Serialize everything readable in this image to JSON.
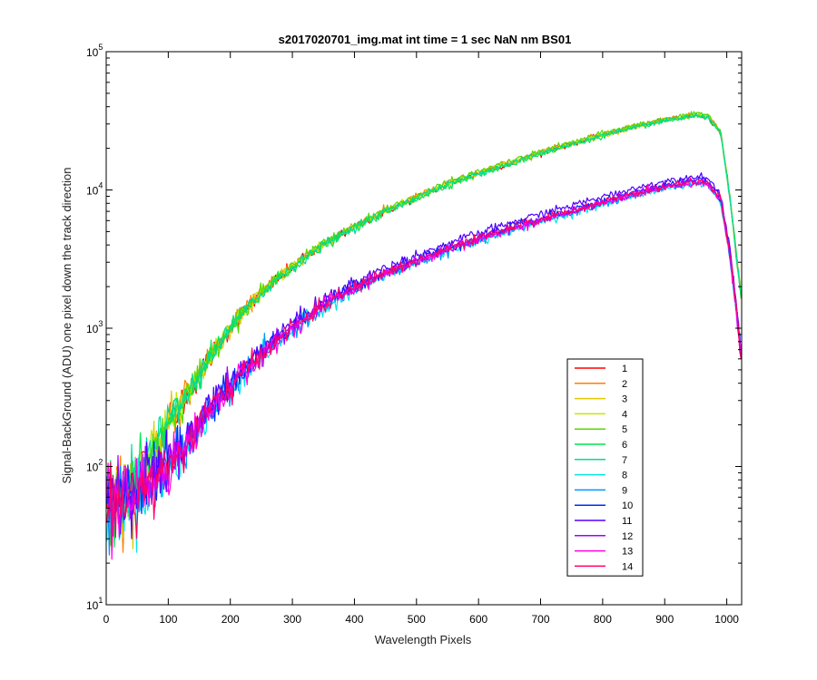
{
  "chart_data": {
    "type": "line",
    "title": "s2017020701_img.mat int time = 1 sec  NaN nm BS01",
    "xlabel": "Wavelength Pixels",
    "ylabel": "Signal-BackGround (ADU) one pixel down the track direction",
    "xlim": [
      0,
      1024
    ],
    "ylim": [
      10,
      100000
    ],
    "yscale": "log",
    "xticks": [
      0,
      100,
      200,
      300,
      400,
      500,
      600,
      700,
      800,
      900,
      1000
    ],
    "yticks": [
      {
        "value": 10,
        "base": "10",
        "exp": "1"
      },
      {
        "value": 100,
        "base": "10",
        "exp": "2"
      },
      {
        "value": 1000,
        "base": "10",
        "exp": "3"
      },
      {
        "value": 10000,
        "base": "10",
        "exp": "4"
      },
      {
        "value": 100000,
        "base": "10",
        "exp": "5"
      }
    ],
    "grid": false,
    "legend_position": "bottom-right",
    "x": [
      0,
      25,
      50,
      75,
      100,
      125,
      150,
      175,
      200,
      250,
      300,
      350,
      400,
      450,
      500,
      550,
      600,
      650,
      700,
      750,
      800,
      850,
      900,
      950,
      970,
      990,
      1005,
      1015,
      1024
    ],
    "upper_group": [
      55,
      60,
      80,
      130,
      200,
      300,
      460,
      700,
      1000,
      1800,
      2800,
      4000,
      5400,
      7000,
      8800,
      11000,
      13200,
      15500,
      18500,
      21500,
      25000,
      28500,
      32000,
      34500,
      34000,
      26000,
      9000,
      3500,
      1500
    ],
    "lower_group": [
      50,
      55,
      65,
      80,
      100,
      130,
      200,
      280,
      370,
      650,
      1000,
      1450,
      1950,
      2500,
      3050,
      3700,
      4400,
      5200,
      6100,
      7000,
      8100,
      9300,
      10500,
      11500,
      11000,
      8500,
      3500,
      1400,
      600
    ],
    "series": [
      {
        "name": "1",
        "color": "#ff0000",
        "group": "upper",
        "scale": 1.0
      },
      {
        "name": "2",
        "color": "#ff7f00",
        "group": "upper",
        "scale": 1.02
      },
      {
        "name": "3",
        "color": "#e6c800",
        "group": "upper",
        "scale": 0.99
      },
      {
        "name": "4",
        "color": "#c8e600",
        "group": "upper",
        "scale": 1.01
      },
      {
        "name": "5",
        "color": "#5ad700",
        "group": "upper",
        "scale": 1.03
      },
      {
        "name": "6",
        "color": "#00e650",
        "group": "upper",
        "scale": 0.98
      },
      {
        "name": "7",
        "color": "#00dc9b",
        "group": "upper",
        "scale": 1.0
      },
      {
        "name": "8",
        "color": "#00e6e6",
        "group": "lower",
        "scale": 0.97
      },
      {
        "name": "9",
        "color": "#0096ff",
        "group": "lower",
        "scale": 0.98
      },
      {
        "name": "10",
        "color": "#0028ff",
        "group": "lower",
        "scale": 1.03
      },
      {
        "name": "11",
        "color": "#5000ff",
        "group": "lower",
        "scale": 1.1
      },
      {
        "name": "12",
        "color": "#a000ff",
        "group": "lower",
        "scale": 1.0
      },
      {
        "name": "13",
        "color": "#ff00e6",
        "group": "lower",
        "scale": 0.99
      },
      {
        "name": "14",
        "color": "#ff0064",
        "group": "lower",
        "scale": 1.01
      }
    ]
  }
}
